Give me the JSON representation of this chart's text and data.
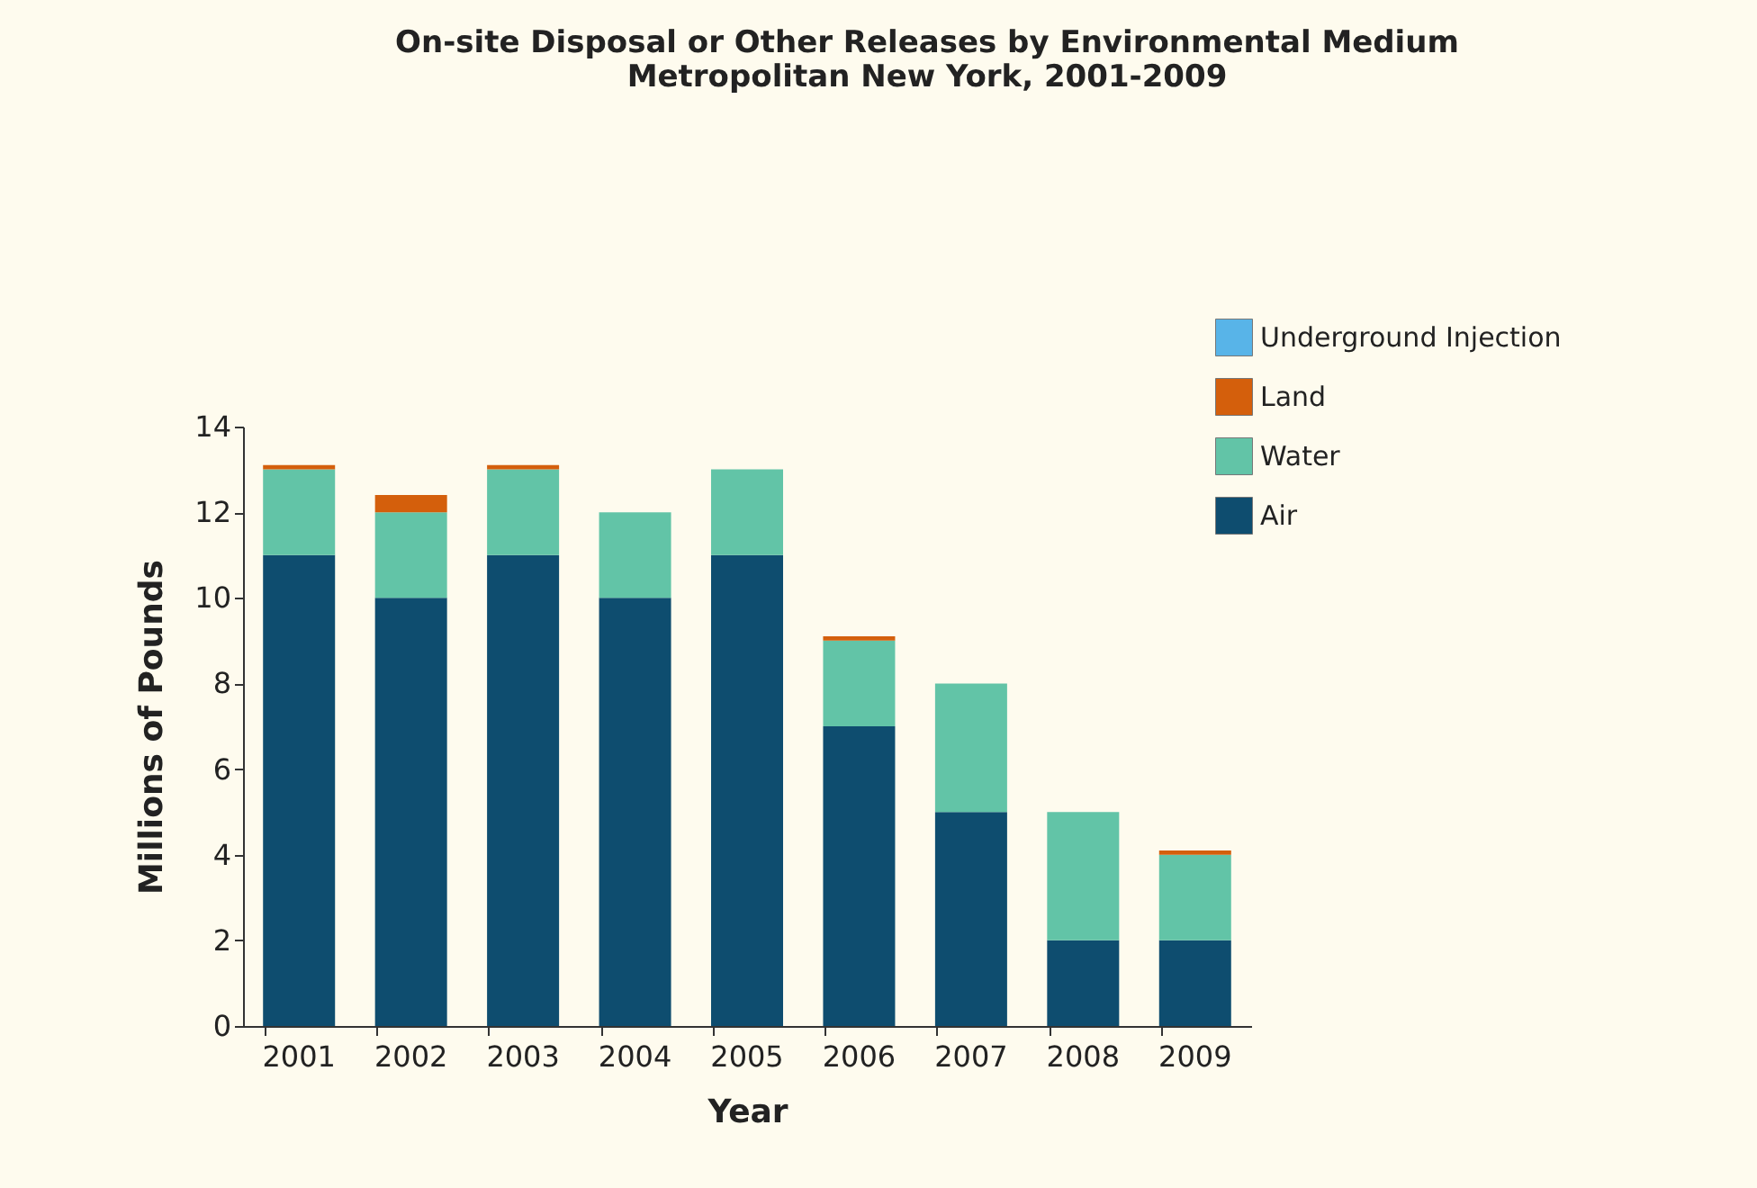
{
  "chart_data": {
    "type": "bar",
    "stacked": true,
    "title": [
      "On-site Disposal or Other Releases by Environmental Medium",
      "Metropolitan New York, 2001-2009"
    ],
    "xlabel": "Year",
    "ylabel": "Millions of Pounds",
    "categories": [
      "2001",
      "2002",
      "2003",
      "2004",
      "2005",
      "2006",
      "2007",
      "2008",
      "2009"
    ],
    "series": [
      {
        "name": "Air",
        "color": "#0e4d6f",
        "values": [
          11,
          10,
          11,
          10,
          11,
          7,
          5,
          2,
          2
        ]
      },
      {
        "name": "Water",
        "color": "#62c4a7",
        "values": [
          2,
          2,
          2,
          2,
          2,
          2,
          3,
          3,
          2
        ]
      },
      {
        "name": "Land",
        "color": "#d45f0c",
        "values": [
          0.1,
          0.4,
          0.1,
          0,
          0,
          0.1,
          0,
          0,
          0.1
        ]
      },
      {
        "name": "Underground Injection",
        "color": "#58b4e8",
        "values": [
          0,
          0,
          0,
          0,
          0,
          0,
          0,
          0,
          0
        ]
      }
    ],
    "ylim": [
      0,
      14
    ],
    "yticks": [
      0,
      2,
      4,
      6,
      8,
      10,
      12,
      14
    ],
    "grid": false,
    "legend": "top right"
  }
}
